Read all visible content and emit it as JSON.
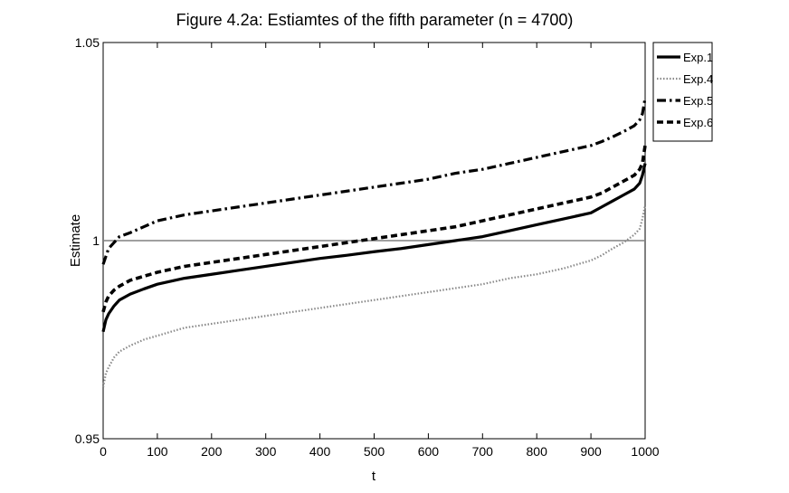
{
  "chart_data": {
    "type": "line",
    "title": "Figure 4.2a: Estiamtes of the fifth parameter (n = 4700)",
    "xlabel": "t",
    "ylabel": "Estimate",
    "xlim": [
      0,
      1000
    ],
    "ylim": [
      0.95,
      1.05
    ],
    "xticks": [
      0,
      100,
      200,
      300,
      400,
      500,
      600,
      700,
      800,
      900,
      1000
    ],
    "yticks": [
      0.95,
      1,
      1.05
    ],
    "ytick_labels": [
      "0.95",
      "1",
      "1.05"
    ],
    "grid": false,
    "legend_position": "top-right-outside",
    "reference_line": {
      "y": 1,
      "color": "#808080"
    },
    "series": [
      {
        "name": "Exp.1",
        "style": "solid",
        "color": "#000000",
        "x": [
          0,
          5,
          10,
          20,
          30,
          50,
          75,
          100,
          150,
          200,
          250,
          300,
          350,
          400,
          450,
          500,
          550,
          600,
          650,
          700,
          750,
          800,
          850,
          900,
          920,
          940,
          960,
          980,
          990,
          995,
          1000
        ],
        "y": [
          0.977,
          0.98,
          0.9815,
          0.9835,
          0.985,
          0.9865,
          0.9878,
          0.989,
          0.9905,
          0.9915,
          0.9925,
          0.9935,
          0.9945,
          0.9955,
          0.9963,
          0.9972,
          0.998,
          0.999,
          1.0,
          1.001,
          1.0025,
          1.004,
          1.0055,
          1.007,
          1.0085,
          1.01,
          1.0115,
          1.013,
          1.0145,
          1.0165,
          1.0195
        ]
      },
      {
        "name": "Exp.4",
        "style": "dotted",
        "color": "#888888",
        "x": [
          0,
          5,
          10,
          20,
          30,
          50,
          75,
          100,
          150,
          200,
          250,
          300,
          350,
          400,
          450,
          500,
          550,
          600,
          650,
          700,
          750,
          800,
          850,
          900,
          920,
          940,
          960,
          980,
          990,
          995,
          1000
        ],
        "y": [
          0.963,
          0.9665,
          0.968,
          0.9705,
          0.972,
          0.9735,
          0.975,
          0.976,
          0.978,
          0.979,
          0.98,
          0.981,
          0.982,
          0.983,
          0.984,
          0.985,
          0.986,
          0.987,
          0.988,
          0.989,
          0.9905,
          0.9915,
          0.993,
          0.995,
          0.9963,
          0.998,
          0.9995,
          1.0015,
          1.003,
          1.0055,
          1.009
        ]
      },
      {
        "name": "Exp.5",
        "style": "dashdot",
        "color": "#000000",
        "x": [
          0,
          5,
          10,
          20,
          30,
          50,
          75,
          100,
          150,
          200,
          250,
          300,
          350,
          400,
          450,
          500,
          550,
          600,
          650,
          700,
          750,
          800,
          850,
          900,
          920,
          940,
          960,
          980,
          990,
          995,
          1000
        ],
        "y": [
          0.994,
          0.996,
          0.998,
          0.9995,
          1.001,
          1.002,
          1.0035,
          1.005,
          1.0065,
          1.0075,
          1.0085,
          1.0095,
          1.0105,
          1.0115,
          1.0125,
          1.0135,
          1.0145,
          1.0155,
          1.017,
          1.018,
          1.0195,
          1.021,
          1.0225,
          1.024,
          1.025,
          1.0262,
          1.0275,
          1.029,
          1.0305,
          1.032,
          1.036
        ]
      },
      {
        "name": "Exp.6",
        "style": "dashed",
        "color": "#000000",
        "x": [
          0,
          5,
          10,
          20,
          30,
          50,
          75,
          100,
          150,
          200,
          250,
          300,
          350,
          400,
          450,
          500,
          550,
          600,
          650,
          700,
          750,
          800,
          850,
          900,
          920,
          940,
          960,
          980,
          990,
          995,
          1000
        ],
        "y": [
          0.982,
          0.9845,
          0.986,
          0.9875,
          0.9885,
          0.99,
          0.991,
          0.992,
          0.9935,
          0.9945,
          0.9955,
          0.9965,
          0.9975,
          0.9985,
          0.9995,
          1.0005,
          1.0015,
          1.0025,
          1.0035,
          1.005,
          1.0065,
          1.008,
          1.0095,
          1.011,
          1.012,
          1.0135,
          1.015,
          1.0165,
          1.018,
          1.0195,
          1.024
        ]
      }
    ]
  }
}
